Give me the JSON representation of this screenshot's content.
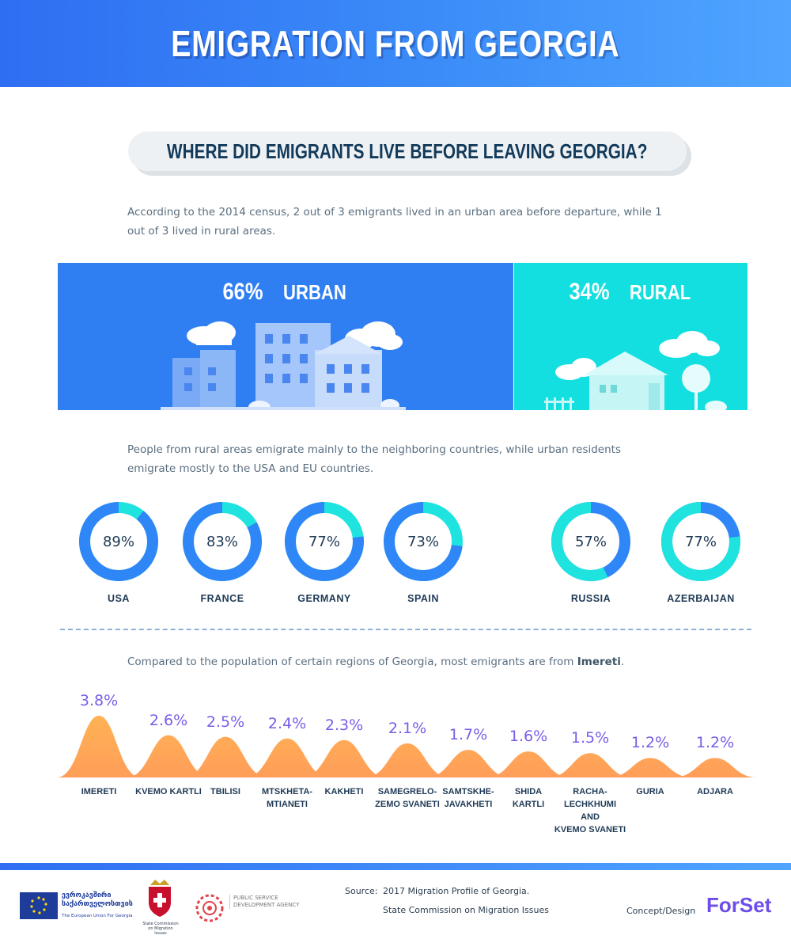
{
  "header": {
    "title": "Emigration from Georgia"
  },
  "question": "WHERE DID EMIGRANTS LIVE BEFORE LEAVING GEORGIA?",
  "intro": "According to the 2014 census, 2 out of 3 emigrants lived in an urban area before departure, while 1 out of 3 lived in rural areas.",
  "split": {
    "urban": {
      "pct": "66%",
      "label": "URBAN",
      "value": 66,
      "color": "#2f7ff3"
    },
    "rural": {
      "pct": "34%",
      "label": "RURAL",
      "value": 34,
      "color": "#13dfe0"
    }
  },
  "destinations_text": "People from rural areas emigrate mainly to the neighboring countries, while urban residents emigrate mostly to the USA and EU countries.",
  "colors": {
    "urban": "#2f86f6",
    "rural": "#1ee3df",
    "peak": "#ffa84a",
    "peak_label": "#7b5ce8"
  },
  "countries": [
    {
      "name": "USA",
      "pct": "89%",
      "urban_share": 89
    },
    {
      "name": "FRANCE",
      "pct": "83%",
      "urban_share": 83
    },
    {
      "name": "GERMANY",
      "pct": "77%",
      "urban_share": 77
    },
    {
      "name": "SPAIN",
      "pct": "73%",
      "urban_share": 73
    },
    {
      "name": "RUSSIA",
      "pct": "57%",
      "rural_share": 57
    },
    {
      "name": "AZERBAIJAN",
      "pct": "77%",
      "rural_share": 77
    }
  ],
  "regions_text_before": "Compared to the population of certain regions of Georgia, most emigrants are from ",
  "regions_text_bold": "Imereti",
  "regions_text_after": ".",
  "chart_data": {
    "type": "area",
    "categories": [
      "IMERETI",
      "KVEMO KARTLI",
      "TBILISI",
      "MTSKHETA-MTIANETI",
      "KAKHETI",
      "SAMEGRELO-ZEMO SVANETI",
      "SAMTSKHE-JAVAKHETI",
      "SHIDA KARTLI",
      "RACHA-LECHKHUMI AND KVEMO SVANETI",
      "GURIA",
      "ADJARA"
    ],
    "values": [
      3.8,
      2.6,
      2.5,
      2.4,
      2.3,
      2.1,
      1.7,
      1.6,
      1.5,
      1.2,
      1.2
    ],
    "labels": [
      "3.8%",
      "2.6%",
      "2.5%",
      "2.4%",
      "2.3%",
      "2.1%",
      "1.7%",
      "1.6%",
      "1.5%",
      "1.2%",
      "1.2%"
    ],
    "region_lines": [
      [
        "IMERETI"
      ],
      [
        "KVEMO KARTLI"
      ],
      [
        "TBILISI"
      ],
      [
        "MTSKHETA-",
        "MTIANETI"
      ],
      [
        "KAKHETI"
      ],
      [
        "SAMEGRELO-",
        "ZEMO SVANETI"
      ],
      [
        "SAMTSKHE-",
        "JAVAKHETI"
      ],
      [
        "SHIDA",
        "KARTLI"
      ],
      [
        "RACHA-LECHKHUMI",
        "AND",
        "KVEMO SVANETI"
      ],
      [
        "GURIA"
      ],
      [
        "ADJARA"
      ]
    ]
  },
  "footer": {
    "source_label": "Source:",
    "source_line1": "2017 Migration Profile of Georgia.",
    "source_line2": "State Commission on Migration Issues",
    "concept": "Concept/Design",
    "brand": "ForSet",
    "eu_line1": "ევროკავშირი",
    "eu_line2": "საქართველოსთვის",
    "eu_sub": "The European Union For Georgia",
    "commission": "State Commission on Migration Issues",
    "psda_line1": "PUBLIC SERVICE",
    "psda_line2": "DEVELOPMENT AGENCY"
  }
}
